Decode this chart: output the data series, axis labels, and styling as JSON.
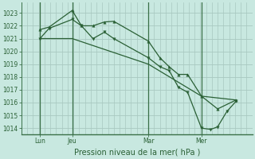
{
  "title": "Pression niveau de la mer( hPa )",
  "bg_color": "#c8e8e0",
  "grid_color": "#a8c8c0",
  "line_color": "#2a6035",
  "vline_color": "#3a7048",
  "ylim": [
    1013.5,
    1023.8
  ],
  "yticks": [
    1014,
    1015,
    1016,
    1017,
    1018,
    1019,
    1020,
    1021,
    1022,
    1023
  ],
  "xlim": [
    0,
    100
  ],
  "xtick_positions": [
    8,
    22,
    55,
    78
  ],
  "xtick_labels": [
    "Lun",
    "Jeu",
    "Mar",
    "Mer"
  ],
  "vlines": [
    8,
    22,
    55,
    78
  ],
  "line1_x": [
    8,
    12,
    22,
    26,
    31,
    36,
    40,
    55,
    60,
    64,
    68,
    72,
    78,
    85,
    93
  ],
  "line1_y": [
    1021.7,
    1021.9,
    1023.2,
    1022.0,
    1022.0,
    1022.3,
    1022.35,
    1020.8,
    1019.5,
    1018.8,
    1018.2,
    1018.2,
    1016.5,
    1015.5,
    1016.2
  ],
  "line2_x": [
    8,
    12,
    22,
    26,
    31,
    36,
    40,
    55,
    60,
    64,
    68,
    72,
    78,
    82,
    85,
    89,
    93
  ],
  "line2_y": [
    1021.0,
    1021.8,
    1022.5,
    1022.0,
    1021.0,
    1021.5,
    1021.0,
    1019.5,
    1018.8,
    1018.5,
    1017.2,
    1016.8,
    1014.0,
    1013.9,
    1014.1,
    1015.3,
    1016.1
  ],
  "line3_x": [
    8,
    22,
    55,
    78,
    93
  ],
  "line3_y": [
    1021.0,
    1021.0,
    1019.0,
    1016.5,
    1016.2
  ],
  "tick_fontsize": 5.5,
  "title_fontsize": 7
}
